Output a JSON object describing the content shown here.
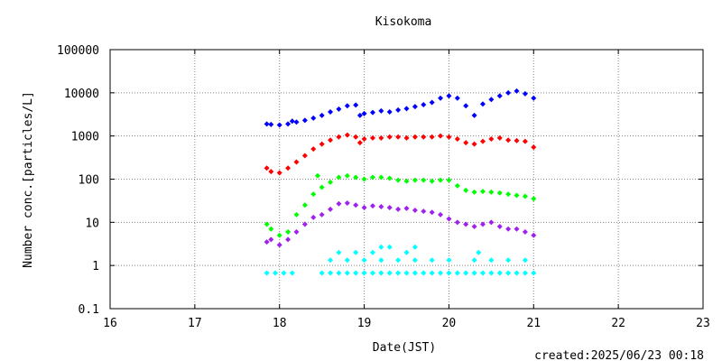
{
  "chart_data": {
    "type": "scatter",
    "title": "Kisokoma",
    "xlabel": "Date(JST)",
    "ylabel": "Number conc.[particles/L]",
    "footer": "created:2025/06/23 00:18",
    "xlim": [
      16,
      23
    ],
    "ylim": [
      0.1,
      100000
    ],
    "yscale": "log",
    "xticks": [
      "16",
      "17",
      "18",
      "19",
      "20",
      "21",
      "22",
      "23"
    ],
    "yticks": [
      "0.1",
      "1",
      "10",
      "100",
      "1000",
      "10000",
      "100000"
    ],
    "grid": true,
    "legend": "none",
    "series": [
      {
        "color": "#0000ff",
        "points": [
          [
            17.85,
            1900
          ],
          [
            17.9,
            1850
          ],
          [
            18.0,
            1800
          ],
          [
            18.1,
            1900
          ],
          [
            18.15,
            2200
          ],
          [
            18.2,
            2100
          ],
          [
            18.3,
            2300
          ],
          [
            18.4,
            2600
          ],
          [
            18.5,
            3000
          ],
          [
            18.6,
            3600
          ],
          [
            18.7,
            4200
          ],
          [
            18.8,
            5000
          ],
          [
            18.9,
            5200
          ],
          [
            18.95,
            3000
          ],
          [
            19.0,
            3300
          ],
          [
            19.1,
            3500
          ],
          [
            19.2,
            3800
          ],
          [
            19.3,
            3600
          ],
          [
            19.4,
            4000
          ],
          [
            19.5,
            4300
          ],
          [
            19.6,
            4800
          ],
          [
            19.7,
            5300
          ],
          [
            19.8,
            6000
          ],
          [
            19.9,
            7500
          ],
          [
            20.0,
            8500
          ],
          [
            20.1,
            7500
          ],
          [
            20.2,
            5000
          ],
          [
            20.3,
            3000
          ],
          [
            20.4,
            5500
          ],
          [
            20.5,
            7000
          ],
          [
            20.6,
            8500
          ],
          [
            20.7,
            10000
          ],
          [
            20.8,
            11000
          ],
          [
            20.9,
            9500
          ],
          [
            21.0,
            7500
          ]
        ]
      },
      {
        "color": "#ff0000",
        "points": [
          [
            17.85,
            180
          ],
          [
            17.9,
            150
          ],
          [
            18.0,
            140
          ],
          [
            18.1,
            180
          ],
          [
            18.2,
            250
          ],
          [
            18.3,
            350
          ],
          [
            18.4,
            500
          ],
          [
            18.5,
            650
          ],
          [
            18.6,
            800
          ],
          [
            18.7,
            950
          ],
          [
            18.8,
            1050
          ],
          [
            18.9,
            950
          ],
          [
            18.95,
            700
          ],
          [
            19.0,
            850
          ],
          [
            19.1,
            900
          ],
          [
            19.2,
            900
          ],
          [
            19.3,
            950
          ],
          [
            19.4,
            950
          ],
          [
            19.5,
            900
          ],
          [
            19.6,
            950
          ],
          [
            19.7,
            950
          ],
          [
            19.8,
            950
          ],
          [
            19.9,
            1000
          ],
          [
            20.0,
            950
          ],
          [
            20.1,
            850
          ],
          [
            20.2,
            700
          ],
          [
            20.3,
            650
          ],
          [
            20.4,
            750
          ],
          [
            20.5,
            850
          ],
          [
            20.6,
            900
          ],
          [
            20.7,
            800
          ],
          [
            20.8,
            780
          ],
          [
            20.9,
            750
          ],
          [
            21.0,
            550
          ]
        ]
      },
      {
        "color": "#00ff00",
        "points": [
          [
            17.85,
            9
          ],
          [
            17.9,
            7
          ],
          [
            18.0,
            5
          ],
          [
            18.1,
            6
          ],
          [
            18.2,
            15
          ],
          [
            18.3,
            25
          ],
          [
            18.4,
            45
          ],
          [
            18.45,
            120
          ],
          [
            18.5,
            65
          ],
          [
            18.6,
            85
          ],
          [
            18.7,
            110
          ],
          [
            18.8,
            120
          ],
          [
            18.9,
            110
          ],
          [
            19.0,
            100
          ],
          [
            19.1,
            110
          ],
          [
            19.2,
            110
          ],
          [
            19.3,
            105
          ],
          [
            19.4,
            95
          ],
          [
            19.5,
            90
          ],
          [
            19.6,
            95
          ],
          [
            19.7,
            95
          ],
          [
            19.8,
            90
          ],
          [
            19.9,
            95
          ],
          [
            20.0,
            95
          ],
          [
            20.1,
            70
          ],
          [
            20.2,
            55
          ],
          [
            20.3,
            50
          ],
          [
            20.4,
            52
          ],
          [
            20.5,
            50
          ],
          [
            20.6,
            48
          ],
          [
            20.7,
            45
          ],
          [
            20.8,
            42
          ],
          [
            20.9,
            40
          ],
          [
            21.0,
            35
          ]
        ]
      },
      {
        "color": "#a020f0",
        "points": [
          [
            17.85,
            3.5
          ],
          [
            17.9,
            4
          ],
          [
            18.0,
            3
          ],
          [
            18.1,
            4
          ],
          [
            18.2,
            6
          ],
          [
            18.3,
            9
          ],
          [
            18.4,
            13
          ],
          [
            18.5,
            15
          ],
          [
            18.6,
            20
          ],
          [
            18.7,
            27
          ],
          [
            18.8,
            28
          ],
          [
            18.9,
            25
          ],
          [
            19.0,
            22
          ],
          [
            19.1,
            24
          ],
          [
            19.2,
            23
          ],
          [
            19.3,
            22
          ],
          [
            19.4,
            20
          ],
          [
            19.5,
            21
          ],
          [
            19.6,
            19
          ],
          [
            19.7,
            18
          ],
          [
            19.8,
            17
          ],
          [
            19.9,
            15
          ],
          [
            20.0,
            12
          ],
          [
            20.1,
            10
          ],
          [
            20.2,
            9
          ],
          [
            20.3,
            8
          ],
          [
            20.4,
            9
          ],
          [
            20.5,
            10
          ],
          [
            20.6,
            8
          ],
          [
            20.7,
            7
          ],
          [
            20.8,
            7
          ],
          [
            20.9,
            6
          ],
          [
            21.0,
            5
          ]
        ]
      },
      {
        "color": "#00ffff",
        "points": [
          [
            17.85,
            0.67
          ],
          [
            17.95,
            0.67
          ],
          [
            18.05,
            0.67
          ],
          [
            18.15,
            0.67
          ],
          [
            18.5,
            0.67
          ],
          [
            18.6,
            0.67
          ],
          [
            18.7,
            0.67
          ],
          [
            18.8,
            0.67
          ],
          [
            18.9,
            0.67
          ],
          [
            19.0,
            0.67
          ],
          [
            19.1,
            0.67
          ],
          [
            19.2,
            0.67
          ],
          [
            19.3,
            0.67
          ],
          [
            19.4,
            0.67
          ],
          [
            19.5,
            0.67
          ],
          [
            19.6,
            0.67
          ],
          [
            19.7,
            0.67
          ],
          [
            19.8,
            0.67
          ],
          [
            19.9,
            0.67
          ],
          [
            20.0,
            0.67
          ],
          [
            20.1,
            0.67
          ],
          [
            20.2,
            0.67
          ],
          [
            20.3,
            0.67
          ],
          [
            20.4,
            0.67
          ],
          [
            20.5,
            0.67
          ],
          [
            20.6,
            0.67
          ],
          [
            20.7,
            0.67
          ],
          [
            20.8,
            0.67
          ],
          [
            20.9,
            0.67
          ],
          [
            21.0,
            0.67
          ],
          [
            18.6,
            1.33
          ],
          [
            18.8,
            1.33
          ],
          [
            19.0,
            1.33
          ],
          [
            19.2,
            1.33
          ],
          [
            19.4,
            1.33
          ],
          [
            19.6,
            1.33
          ],
          [
            19.8,
            1.33
          ],
          [
            20.0,
            1.33
          ],
          [
            20.3,
            1.33
          ],
          [
            20.5,
            1.33
          ],
          [
            20.7,
            1.33
          ],
          [
            20.9,
            1.33
          ],
          [
            18.7,
            2.0
          ],
          [
            18.9,
            2.0
          ],
          [
            19.1,
            2.0
          ],
          [
            19.2,
            2.67
          ],
          [
            19.3,
            2.67
          ],
          [
            19.5,
            2.0
          ],
          [
            19.6,
            2.67
          ],
          [
            20.35,
            2.0
          ]
        ]
      }
    ]
  }
}
